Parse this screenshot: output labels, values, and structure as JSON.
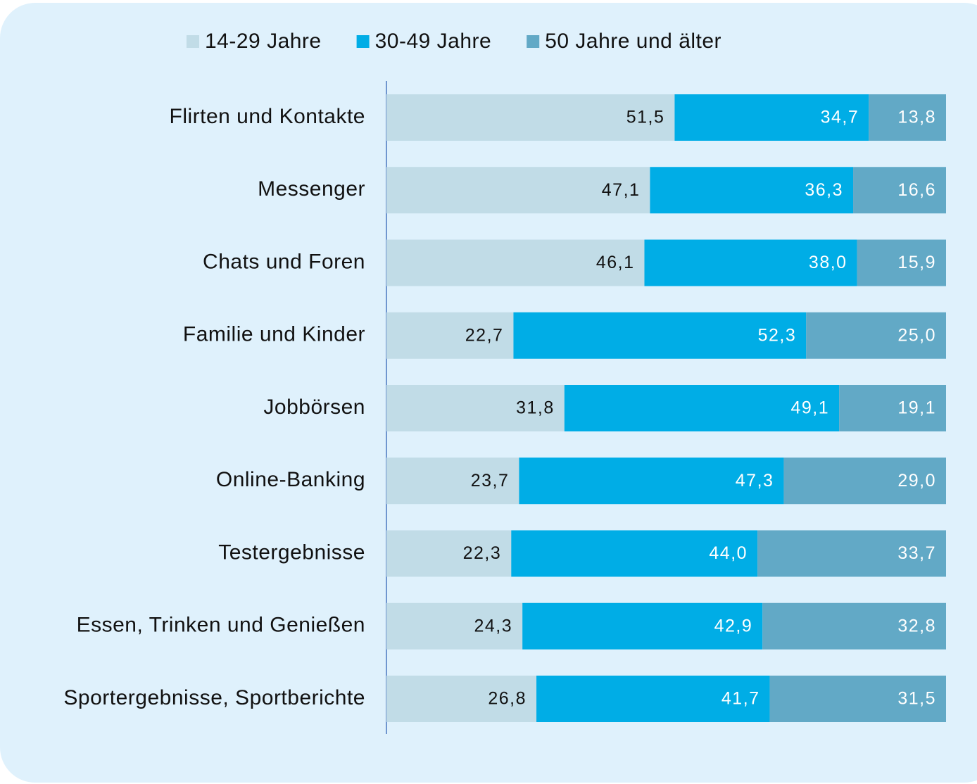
{
  "chart_data": {
    "type": "stacked-bar-horizontal",
    "categories": [
      "Flirten und Kontakte",
      "Messenger",
      "Chats und Foren",
      "Familie und Kinder",
      "Jobbörsen",
      "Online-Banking",
      "Testergebnisse",
      "Essen, Trinken und Genießen",
      "Sportergebnisse, Sportberichte"
    ],
    "series": [
      {
        "name": "14-29 Jahre",
        "color": "#c1dce7",
        "label_color": "#111111",
        "values": [
          51.5,
          47.1,
          46.1,
          22.7,
          31.8,
          23.7,
          22.3,
          24.3,
          26.8
        ],
        "value_labels": [
          "51,5",
          "47,1",
          "46,1",
          "22,7",
          "31,8",
          "23,7",
          "22,3",
          "24,3",
          "26,8"
        ]
      },
      {
        "name": "30-49 Jahre",
        "color": "#00ade6",
        "label_color": "#ffffff",
        "values": [
          34.7,
          36.3,
          38.0,
          52.3,
          49.1,
          47.3,
          44.0,
          42.9,
          41.7
        ],
        "value_labels": [
          "34,7",
          "36,3",
          "38,0",
          "52,3",
          "49,1",
          "47,3",
          "44,0",
          "42,9",
          "41,7"
        ]
      },
      {
        "name": "50 Jahre und älter",
        "color": "#62a9c6",
        "label_color": "#ffffff",
        "values": [
          13.8,
          16.6,
          15.9,
          25.0,
          19.1,
          29.0,
          33.7,
          32.8,
          31.5
        ],
        "value_labels": [
          "13,8",
          "16,6",
          "15,9",
          "25,0",
          "19,1",
          "29,0",
          "33,7",
          "32,8",
          "31,5"
        ]
      }
    ],
    "legend": "top"
  }
}
